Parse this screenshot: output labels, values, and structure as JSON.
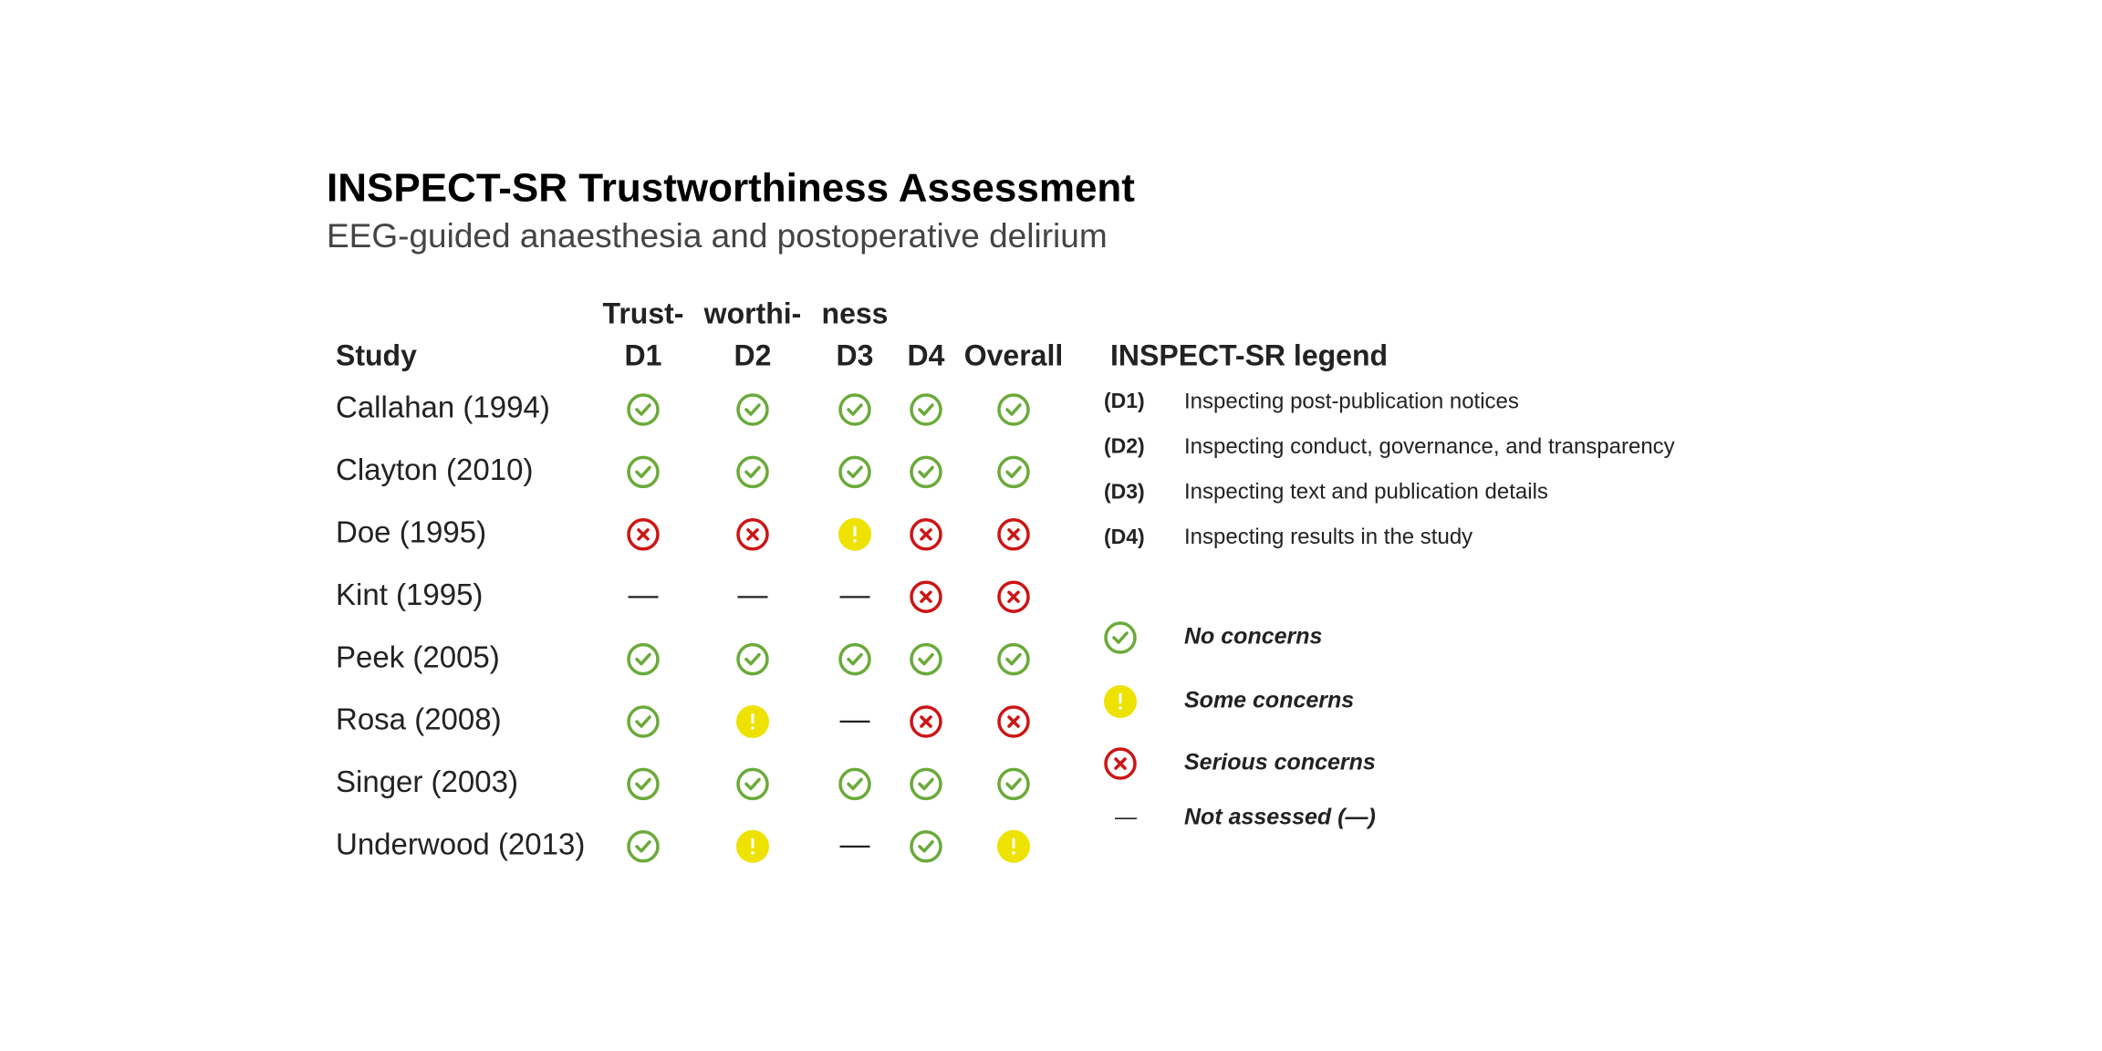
{
  "header": {
    "title": "INSPECT-SR Trustworthiness Assessment",
    "subtitle": "EEG-guided anaesthesia and postoperative delirium"
  },
  "table": {
    "group_header": [
      "Trust-",
      "worthi-",
      "ness"
    ],
    "row_header": "Study",
    "columns": [
      "D1",
      "D2",
      "D3",
      "D4",
      "Overall"
    ],
    "rows": [
      {
        "study": "Callahan (1994)",
        "values": [
          0,
          0,
          0,
          0,
          0
        ]
      },
      {
        "study": "Clayton (2010)",
        "values": [
          0,
          0,
          0,
          0,
          0
        ]
      },
      {
        "study": "Doe (1995)",
        "values": [
          2,
          2,
          1,
          2,
          2
        ]
      },
      {
        "study": "Kint (1995)",
        "values": [
          3,
          3,
          3,
          2,
          2
        ]
      },
      {
        "study": "Peek (2005)",
        "values": [
          0,
          0,
          0,
          0,
          0
        ]
      },
      {
        "study": "Rosa (2008)",
        "values": [
          0,
          1,
          3,
          2,
          2
        ]
      },
      {
        "study": "Singer (2003)",
        "values": [
          0,
          0,
          0,
          0,
          0
        ]
      },
      {
        "study": "Underwood (2013)",
        "values": [
          0,
          1,
          3,
          0,
          1
        ]
      }
    ]
  },
  "legend": {
    "title": "INSPECT-SR legend",
    "domains": [
      {
        "code": "(D1)",
        "text": "Inspecting post-publication notices"
      },
      {
        "code": "(D2)",
        "text": "Inspecting conduct, governance, and transparency"
      },
      {
        "code": "(D3)",
        "text": "Inspecting text and publication details"
      },
      {
        "code": "(D4)",
        "text": "Inspecting results in the study"
      }
    ],
    "items": [
      {
        "label": "No concerns",
        "color": "#6aaa3a"
      },
      {
        "label": "Some concerns",
        "color": "#eee200"
      },
      {
        "label": "Serious concerns",
        "color": "#cc1515"
      },
      {
        "label": "Not assessed (—)",
        "symbol": "—",
        "color": "#222222"
      }
    ]
  }
}
